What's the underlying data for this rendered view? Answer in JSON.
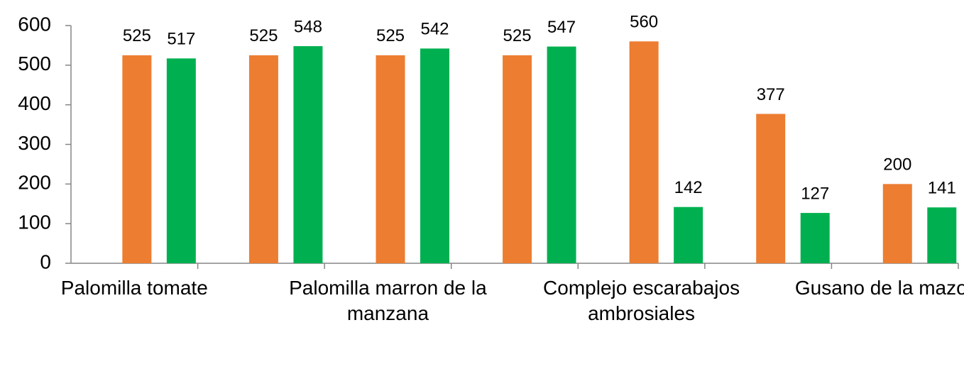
{
  "chart_data": {
    "type": "bar",
    "categories": [
      "Palomilla tomate",
      null,
      "Palomilla marron de la manzana",
      null,
      "Complejo escarabajos ambrosiales",
      null,
      "Gusano de la mazorca"
    ],
    "series": [
      {
        "color": "#ed7d31",
        "values": [
          525,
          525,
          525,
          525,
          560,
          377,
          200
        ]
      },
      {
        "color": "#00b050",
        "values": [
          517,
          548,
          542,
          547,
          142,
          127,
          141
        ]
      }
    ],
    "ylim": [
      0,
      600
    ],
    "yticks": [
      0,
      100,
      200,
      300,
      400,
      500,
      600
    ],
    "grid": false
  }
}
